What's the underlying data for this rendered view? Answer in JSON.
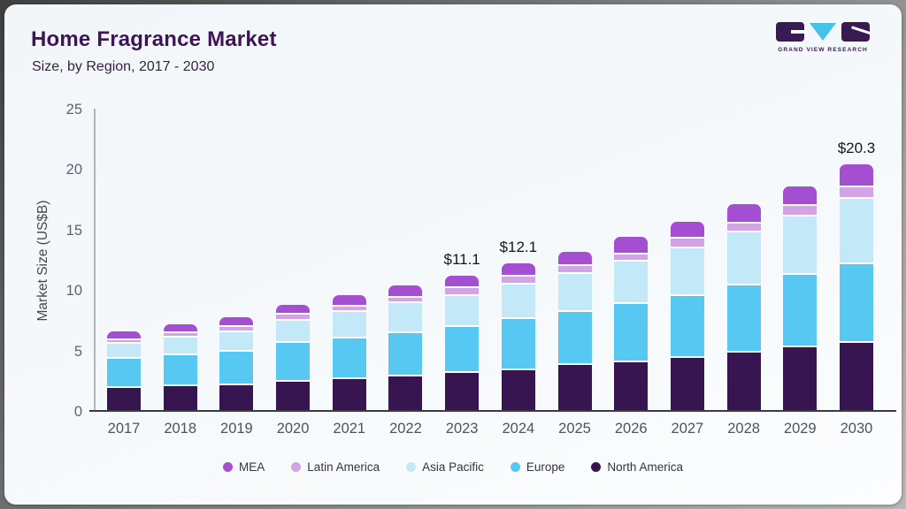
{
  "header": {
    "title": "Home Fragrance Market",
    "subtitle": "Size, by Region, 2017 - 2030"
  },
  "logo": {
    "brand_name": "GRAND VIEW RESEARCH",
    "block_color": "#3a1a52",
    "triangle_color": "#45c2ea"
  },
  "chart_data": {
    "type": "bar",
    "stacked": true,
    "title": "Home Fragrance Market",
    "subtitle": "Size, by Region, 2017 - 2030",
    "ylabel": "Market Size (US$B)",
    "ylim": [
      0,
      25
    ],
    "yticks": [
      0,
      5,
      10,
      15,
      20,
      25
    ],
    "grid": false,
    "legend_position": "bottom",
    "categories": [
      "2017",
      "2018",
      "2019",
      "2020",
      "2021",
      "2022",
      "2023",
      "2024",
      "2025",
      "2026",
      "2027",
      "2028",
      "2029",
      "2030"
    ],
    "series": [
      {
        "name": "North America",
        "color": "#361550",
        "values": [
          2.0,
          2.1,
          2.2,
          2.5,
          2.7,
          2.95,
          3.2,
          3.45,
          3.9,
          4.1,
          4.45,
          4.9,
          5.35,
          5.7
        ]
      },
      {
        "name": "Europe",
        "color": "#57c8f2",
        "values": [
          2.35,
          2.55,
          2.8,
          3.2,
          3.35,
          3.55,
          3.85,
          4.2,
          4.35,
          4.8,
          5.1,
          5.55,
          6.0,
          6.5
        ]
      },
      {
        "name": "Asia Pacific",
        "color": "#c3e8f8",
        "values": [
          1.25,
          1.5,
          1.6,
          1.85,
          2.2,
          2.5,
          2.55,
          2.85,
          3.15,
          3.5,
          4.0,
          4.4,
          4.8,
          5.4
        ]
      },
      {
        "name": "Latin America",
        "color": "#d2a4e6",
        "values": [
          0.35,
          0.37,
          0.4,
          0.5,
          0.45,
          0.45,
          0.6,
          0.72,
          0.65,
          0.6,
          0.8,
          0.75,
          0.85,
          1.0
        ]
      },
      {
        "name": "MEA",
        "color": "#a44fd1",
        "values": [
          0.55,
          0.58,
          0.65,
          0.65,
          0.8,
          0.85,
          0.9,
          0.88,
          1.05,
          1.3,
          1.25,
          1.4,
          1.5,
          1.7
        ]
      }
    ],
    "totals": [
      6.5,
      7.1,
      7.65,
      8.7,
      9.5,
      10.3,
      11.1,
      12.1,
      13.1,
      14.3,
      15.6,
      17.0,
      18.5,
      20.3
    ],
    "annotations": [
      {
        "category": "2023",
        "text": "$11.1"
      },
      {
        "category": "2024",
        "text": "$12.1"
      },
      {
        "category": "2030",
        "text": "$20.3"
      }
    ]
  }
}
